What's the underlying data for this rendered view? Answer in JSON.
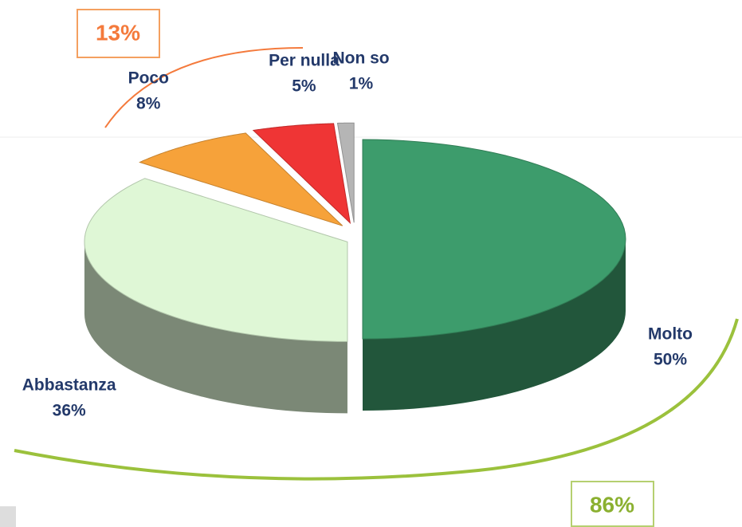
{
  "chart_data": {
    "type": "pie",
    "categories": [
      "Molto",
      "Abbastanza",
      "Poco",
      "Per nulla",
      "Non so"
    ],
    "values": [
      50,
      36,
      8,
      5,
      1
    ],
    "value_labels": [
      "50%",
      "36%",
      "8%",
      "5%",
      "1%"
    ],
    "colors": [
      "#3d9c6c",
      "#dff7d6",
      "#f6a23a",
      "#ef3535",
      "#b5b5b5"
    ],
    "annotations": [
      {
        "text": "13%",
        "color": "#f47a3c"
      },
      {
        "text": "86%",
        "color": "#9bc13c"
      }
    ]
  }
}
